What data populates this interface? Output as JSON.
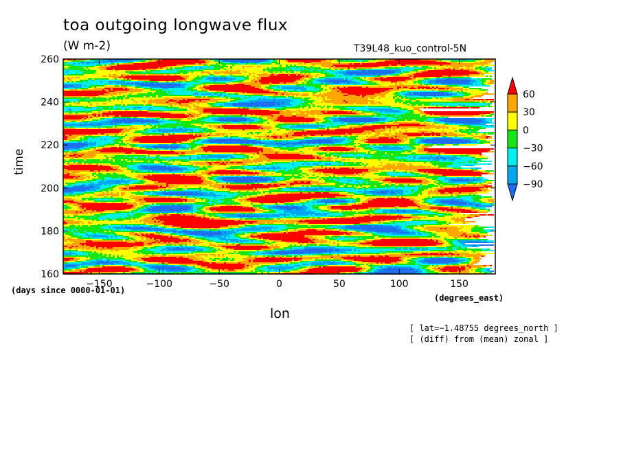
{
  "chart_data": {
    "type": "heatmap",
    "title": "toa outgoing longwave flux",
    "units": "(W m-2)",
    "run_label": "T39L48_kuo_control-5N",
    "xlabel": "lon",
    "ylabel": "time",
    "x_units_label": "(degrees_east)",
    "time_units_label": "(days since 0000-01-01)",
    "xlim": [
      -180,
      180
    ],
    "ylim": [
      160,
      260
    ],
    "x_ticks": [
      -150,
      -100,
      -50,
      0,
      50,
      100,
      150
    ],
    "x_tick_labels": [
      "−150",
      "−100",
      "−50",
      "0",
      "50",
      "100",
      "150"
    ],
    "y_ticks": [
      160,
      180,
      200,
      220,
      240,
      260
    ],
    "y_tick_labels": [
      "160",
      "180",
      "200",
      "220",
      "240",
      "260"
    ],
    "colorbar": {
      "levels": [
        -90,
        -60,
        -30,
        0,
        30,
        60
      ],
      "level_labels": [
        "−90",
        "−60",
        "−30",
        "0",
        "30",
        "60"
      ],
      "colors": [
        "#1e6ef0",
        "#00a8f0",
        "#00f0f0",
        "#14e614",
        "#ffff00",
        "#ffa500",
        "#ff0000"
      ]
    },
    "annotations": [
      "[ lat=−1.48755 degrees_north ]",
      "[ (diff) from (mean) zonal ]"
    ],
    "grid": false
  }
}
